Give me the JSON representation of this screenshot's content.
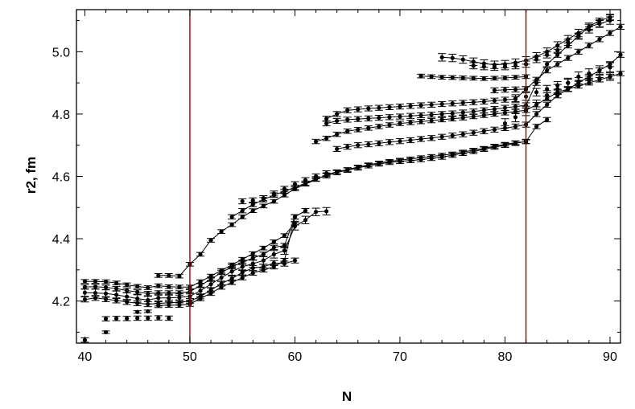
{
  "chart_data": {
    "type": "scatter",
    "title": "",
    "xlabel": "N",
    "ylabel": "r2, fm",
    "xlim": [
      39.2,
      91
    ],
    "ylim": [
      4.065,
      5.135
    ],
    "xticks": [
      40,
      50,
      60,
      70,
      80,
      90
    ],
    "yticks": [
      4.2,
      4.4,
      4.6,
      4.8,
      5.0
    ],
    "xtick_labels": [
      "40",
      "50",
      "60",
      "70",
      "80",
      "90"
    ],
    "ytick_labels": [
      "4.2",
      "4.4",
      "4.6",
      "4.8",
      "5.0"
    ],
    "grid": false,
    "legend": "none",
    "vertical_lines": [
      50,
      82
    ],
    "colors": {
      "marker": "#000000",
      "line": "#000000",
      "reference_line": "#a00000"
    },
    "series": [
      {
        "x": [
          40,
          42,
          43,
          44,
          45,
          46,
          47,
          48
        ],
        "y": [
          4.075,
          4.143,
          4.144,
          4.144,
          4.145,
          4.145,
          4.146,
          4.145
        ],
        "err": 0.007,
        "connected": false
      },
      {
        "x": [
          42,
          45,
          46
        ],
        "y": [
          4.1,
          4.165,
          4.167
        ],
        "err": 0.004,
        "connected": false
      },
      {
        "x": [
          40,
          41,
          42,
          43,
          44,
          45,
          46,
          47,
          48,
          49,
          50,
          51,
          52,
          53,
          54,
          55,
          56,
          57,
          58,
          59,
          60
        ],
        "y": [
          4.263,
          4.263,
          4.262,
          4.258,
          4.252,
          4.247,
          4.243,
          4.249,
          4.246,
          4.245,
          4.245,
          4.262,
          4.28,
          4.298,
          4.316,
          4.334,
          4.352,
          4.37,
          4.39,
          4.41,
          4.45
        ],
        "err": 0.006,
        "connected": true
      },
      {
        "x": [
          40,
          41,
          42,
          43,
          44,
          45,
          46,
          47,
          48,
          49,
          50,
          51,
          52,
          53,
          54,
          55,
          56,
          57,
          58,
          59,
          60,
          61
        ],
        "y": [
          4.245,
          4.246,
          4.244,
          4.24,
          4.234,
          4.229,
          4.224,
          4.226,
          4.226,
          4.226,
          4.23,
          4.25,
          4.27,
          4.292,
          4.31,
          4.324,
          4.338,
          4.35,
          4.372,
          4.378,
          4.47,
          4.49
        ],
        "err": 0.007,
        "connected": true
      },
      {
        "x": [
          40,
          41,
          42,
          43,
          44,
          45,
          46,
          47,
          48,
          49,
          50,
          51,
          52,
          53,
          54,
          55,
          56,
          57,
          58,
          59,
          60,
          61,
          62,
          63
        ],
        "y": [
          4.227,
          4.226,
          4.224,
          4.22,
          4.214,
          4.208,
          4.203,
          4.21,
          4.21,
          4.212,
          4.215,
          4.233,
          4.254,
          4.275,
          4.295,
          4.31,
          4.32,
          4.33,
          4.35,
          4.362,
          4.44,
          4.46,
          4.486,
          4.488
        ],
        "err": 0.012,
        "connected": true
      },
      {
        "x": [
          40,
          41,
          42,
          43,
          44,
          45,
          46,
          47,
          48,
          49,
          50,
          51,
          52,
          53,
          54,
          55,
          56,
          57,
          58,
          59,
          60
        ],
        "y": [
          4.205,
          4.21,
          4.206,
          4.202,
          4.197,
          4.193,
          4.19,
          4.192,
          4.195,
          4.196,
          4.2,
          4.215,
          4.235,
          4.256,
          4.272,
          4.292,
          4.306,
          4.31,
          4.322,
          4.32,
          4.33
        ],
        "err": 0.008,
        "connected": true
      },
      {
        "x": [
          47,
          48,
          49,
          50,
          51,
          52,
          53,
          54,
          55,
          56,
          57,
          58,
          59,
          60
        ],
        "y": [
          4.186,
          4.187,
          4.187,
          4.19,
          4.208,
          4.225,
          4.245,
          4.26,
          4.275,
          4.29,
          4.3,
          4.31,
          4.33,
          4.47
        ],
        "err": 0.007,
        "connected": true
      },
      {
        "x": [
          47,
          48,
          49,
          50,
          51,
          52,
          53,
          54,
          55,
          56,
          57,
          58,
          59,
          60,
          61,
          62,
          63,
          64,
          65,
          66,
          67,
          68,
          69,
          70,
          71,
          72,
          73,
          74,
          75,
          76,
          77,
          78,
          79,
          80,
          81,
          82
        ],
        "y": [
          4.282,
          4.282,
          4.28,
          4.318,
          4.35,
          4.395,
          4.423,
          4.445,
          4.47,
          4.49,
          4.505,
          4.52,
          4.54,
          4.56,
          4.575,
          4.59,
          4.605,
          4.615,
          4.622,
          4.63,
          4.637,
          4.643,
          4.648,
          4.652,
          4.656,
          4.66,
          4.664,
          4.668,
          4.672,
          4.678,
          4.684,
          4.69,
          4.697,
          4.703,
          4.708,
          4.711
        ],
        "err": 0.006,
        "connected": true
      },
      {
        "x": [
          54,
          55,
          56,
          57,
          58,
          59,
          60,
          61,
          62,
          63,
          64,
          65,
          66,
          67,
          68,
          69,
          70,
          71,
          72,
          73,
          74,
          75,
          76,
          77,
          78,
          79,
          80,
          81,
          82,
          83,
          84
        ],
        "y": [
          4.47,
          4.49,
          4.51,
          4.525,
          4.54,
          4.552,
          4.565,
          4.578,
          4.592,
          4.602,
          4.612,
          4.62,
          4.627,
          4.634,
          4.64,
          4.645,
          4.648,
          4.651,
          4.654,
          4.658,
          4.662,
          4.668,
          4.674,
          4.68,
          4.687,
          4.694,
          4.7,
          4.706,
          4.712,
          4.76,
          4.782
        ],
        "err": 0.007,
        "connected": true
      },
      {
        "x": [
          55,
          56,
          57,
          58,
          59,
          60,
          61,
          62,
          63
        ],
        "y": [
          4.52,
          4.523,
          4.53,
          4.545,
          4.56,
          4.575,
          4.588,
          4.6,
          4.61
        ],
        "err": 0.008,
        "connected": false
      },
      {
        "x": [
          62,
          63,
          64,
          65,
          66,
          67,
          68,
          69,
          70,
          71,
          72,
          73,
          74,
          75,
          76,
          77,
          78,
          79,
          80,
          81,
          82,
          83,
          84,
          85,
          86,
          87,
          88,
          89,
          90,
          91
        ],
        "y": [
          4.712,
          4.722,
          4.735,
          4.745,
          4.75,
          4.755,
          4.76,
          4.765,
          4.77,
          4.773,
          4.776,
          4.779,
          4.782,
          4.785,
          4.788,
          4.792,
          4.796,
          4.8,
          4.804,
          4.808,
          4.812,
          4.83,
          4.85,
          4.87,
          4.88,
          4.89,
          4.9,
          4.91,
          4.92,
          4.93
        ],
        "err": 0.007,
        "connected": true
      },
      {
        "x": [
          64,
          65,
          66,
          67,
          68,
          69,
          70,
          71,
          72,
          73,
          74,
          75,
          76,
          77,
          78,
          79,
          80,
          81,
          82,
          83,
          84,
          85,
          86,
          87,
          88,
          89,
          90,
          91
        ],
        "y": [
          4.688,
          4.695,
          4.7,
          4.703,
          4.706,
          4.71,
          4.713,
          4.716,
          4.72,
          4.723,
          4.727,
          4.731,
          4.735,
          4.74,
          4.745,
          4.75,
          4.755,
          4.76,
          4.766,
          4.8,
          4.83,
          4.86,
          4.88,
          4.9,
          4.92,
          4.94,
          4.96,
          4.99
        ],
        "err": 0.008,
        "connected": true
      },
      {
        "x": [
          63,
          64,
          65,
          66,
          67,
          68,
          69,
          70,
          71,
          72,
          73,
          74,
          75,
          76,
          77,
          78,
          79,
          80,
          81,
          82,
          83,
          84,
          85,
          86,
          87,
          88,
          89,
          90,
          91
        ],
        "y": [
          4.785,
          4.8,
          4.812,
          4.815,
          4.818,
          4.82,
          4.822,
          4.824,
          4.826,
          4.828,
          4.83,
          4.832,
          4.834,
          4.836,
          4.838,
          4.84,
          4.843,
          4.846,
          4.848,
          4.88,
          4.91,
          4.94,
          4.96,
          4.98,
          5.0,
          5.02,
          5.04,
          5.06,
          5.08
        ],
        "err": 0.008,
        "connected": true
      },
      {
        "x": [
          63,
          64,
          65,
          66,
          67,
          68,
          69,
          70,
          71,
          72,
          73,
          74,
          75,
          76,
          77,
          78,
          79,
          80,
          81,
          82,
          83,
          84,
          85,
          86,
          87,
          88,
          89,
          90
        ],
        "y": [
          4.77,
          4.778,
          4.782,
          4.784,
          4.786,
          4.788,
          4.79,
          4.792,
          4.794,
          4.796,
          4.798,
          4.8,
          4.802,
          4.805,
          4.808,
          4.812,
          4.816,
          4.82,
          4.824,
          4.828,
          4.9,
          4.96,
          4.99,
          5.02,
          5.05,
          5.08,
          5.1,
          5.11
        ],
        "err": 0.008,
        "connected": true
      },
      {
        "x": [
          72,
          73,
          74,
          75,
          76,
          77,
          78,
          79,
          80,
          81,
          82
        ],
        "y": [
          4.922,
          4.92,
          4.918,
          4.917,
          4.916,
          4.915,
          4.914,
          4.915,
          4.916,
          4.918,
          4.92
        ],
        "err": 0.006,
        "connected": true
      },
      {
        "x": [
          74,
          75,
          76,
          77,
          78,
          79,
          80,
          81,
          82,
          83,
          84,
          85,
          86,
          87,
          88,
          89,
          90
        ],
        "y": [
          4.982,
          4.98,
          4.975,
          4.968,
          4.962,
          4.958,
          4.96,
          4.965,
          4.972,
          4.985,
          5.0,
          5.02,
          5.04,
          5.06,
          5.08,
          5.09,
          5.1
        ],
        "err": 0.012,
        "connected": true
      },
      {
        "x": [
          77,
          78,
          79,
          80,
          81,
          82,
          83,
          84,
          85,
          86,
          87,
          88,
          89,
          90
        ],
        "y": [
          4.955,
          4.952,
          4.95,
          4.952,
          4.955,
          4.96,
          4.975,
          4.99,
          5.005,
          5.03,
          5.05,
          5.07,
          5.09,
          5.11
        ],
        "err": 0.01,
        "connected": false
      },
      {
        "x": [
          79,
          80,
          81,
          82
        ],
        "y": [
          4.876,
          4.878,
          4.879,
          4.88
        ],
        "err": 0.008,
        "connected": true
      },
      {
        "x": [
          81,
          82,
          83,
          84,
          85,
          86,
          87,
          88,
          89,
          90
        ],
        "y": [
          4.85,
          4.856,
          4.87,
          4.88,
          4.892,
          4.9,
          4.905,
          4.91,
          4.915,
          4.92
        ],
        "err": 0.012,
        "connected": false
      },
      {
        "x": [
          80,
          81,
          82,
          83,
          84,
          85,
          86,
          87,
          88,
          89,
          90
        ],
        "y": [
          4.77,
          4.79,
          4.81,
          4.83,
          4.86,
          4.88,
          4.9,
          4.92,
          4.93,
          4.94,
          4.95
        ],
        "err": 0.015,
        "connected": false
      }
    ]
  }
}
